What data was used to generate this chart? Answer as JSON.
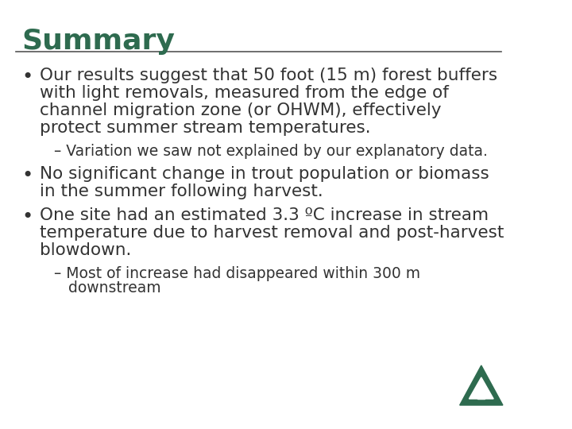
{
  "title": "Summary",
  "title_color": "#2e6b4f",
  "title_fontsize": 26,
  "background_color": "#ffffff",
  "separator_color": "#555555",
  "body_color": "#333333",
  "body_fontsize": 15.5,
  "sub_fontsize": 13.5,
  "bullet_items": [
    {
      "type": "bullet",
      "text": "Our results suggest that 50 foot (15 m) forest buffers\nwith light removals, measured from the edge of\nchannel migration zone (or OHWM), effectively\nprotect summer stream temperatures."
    },
    {
      "type": "sub",
      "text": "– Variation we saw not explained by our explanatory data."
    },
    {
      "type": "bullet",
      "text": "No significant change in trout population or biomass\nin the summer following harvest."
    },
    {
      "type": "bullet",
      "text": "One site had an estimated 3.3 ºC increase in stream\ntemperature due to harvest removal and post-harvest\nblowdown."
    },
    {
      "type": "sub",
      "text": "– Most of increase had disappeared within 300 m\n   downstream"
    }
  ],
  "logo_color": "#2e6b4f"
}
